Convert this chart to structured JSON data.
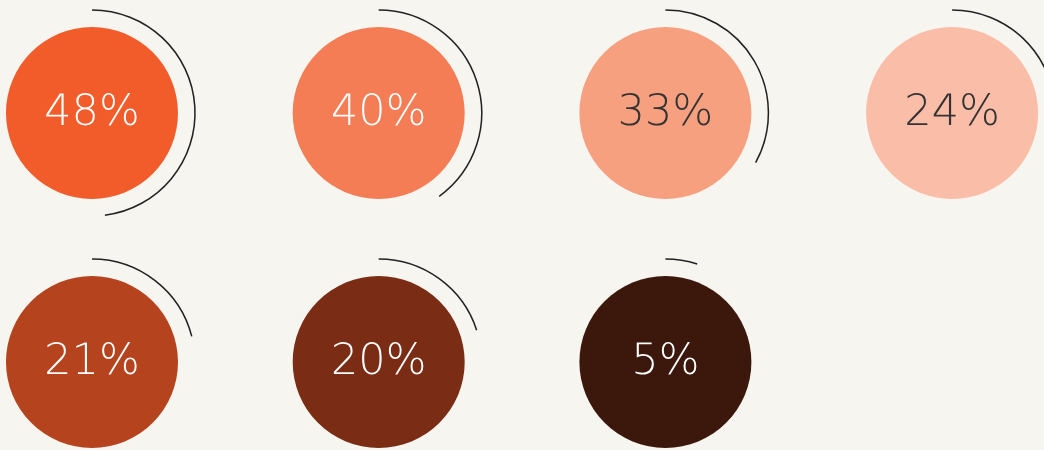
{
  "chart_data": {
    "type": "other",
    "categories": [
      null,
      null,
      null,
      null,
      null,
      null,
      null
    ],
    "values": [
      48,
      40,
      33,
      24,
      21,
      20,
      5
    ],
    "colors": [
      "#f25c2a",
      "#f47d55",
      "#f7a07f",
      "#fabda8",
      "#b5441e",
      "#7a2c14",
      "#3c170c"
    ],
    "value_labels": [
      "48%",
      "40%",
      "33%",
      "24%",
      "21%",
      "20%",
      "5%"
    ]
  }
}
